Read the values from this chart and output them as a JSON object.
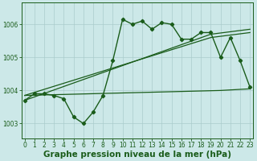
{
  "line_main": {
    "x": [
      0,
      1,
      2,
      3,
      4,
      5,
      6,
      7,
      8,
      9,
      10,
      11,
      12,
      13,
      14,
      15,
      16,
      17,
      18,
      19,
      20,
      21,
      22,
      23
    ],
    "y": [
      1003.7,
      1003.9,
      1003.9,
      1003.85,
      1003.75,
      1003.2,
      1003.0,
      1003.35,
      1003.85,
      1004.9,
      1006.15,
      1006.0,
      1006.1,
      1005.85,
      1006.05,
      1006.0,
      1005.55,
      1005.55,
      1005.75,
      1005.75,
      1005.0,
      1005.6,
      1004.9,
      1004.1
    ]
  },
  "line_trend1": {
    "x": [
      0,
      19,
      23
    ],
    "y": [
      1003.85,
      1005.6,
      1005.75
    ]
  },
  "line_trend2": {
    "x": [
      0,
      19,
      23
    ],
    "y": [
      1003.7,
      1005.7,
      1005.85
    ]
  },
  "line_flat": {
    "x": [
      0,
      20,
      23
    ],
    "y": [
      1003.85,
      1004.0,
      1004.05
    ]
  },
  "ylim": [
    1002.55,
    1006.65
  ],
  "xlim": [
    -0.3,
    23.3
  ],
  "yticks": [
    1003,
    1004,
    1005,
    1006
  ],
  "xticks": [
    0,
    1,
    2,
    3,
    4,
    5,
    6,
    7,
    8,
    9,
    10,
    11,
    12,
    13,
    14,
    15,
    16,
    17,
    18,
    19,
    20,
    21,
    22,
    23
  ],
  "xlabel": "Graphe pression niveau de la mer (hPa)",
  "bg_color": "#cce8e8",
  "grid_color": "#aacccc",
  "line_color": "#1a5c1a",
  "axis_label_color": "#1a5c1a",
  "tick_fontsize": 5.5,
  "label_fontsize": 7.5,
  "marker": "D",
  "markersize": 2.2,
  "linewidth_main": 1.0,
  "linewidth_trend": 0.9
}
